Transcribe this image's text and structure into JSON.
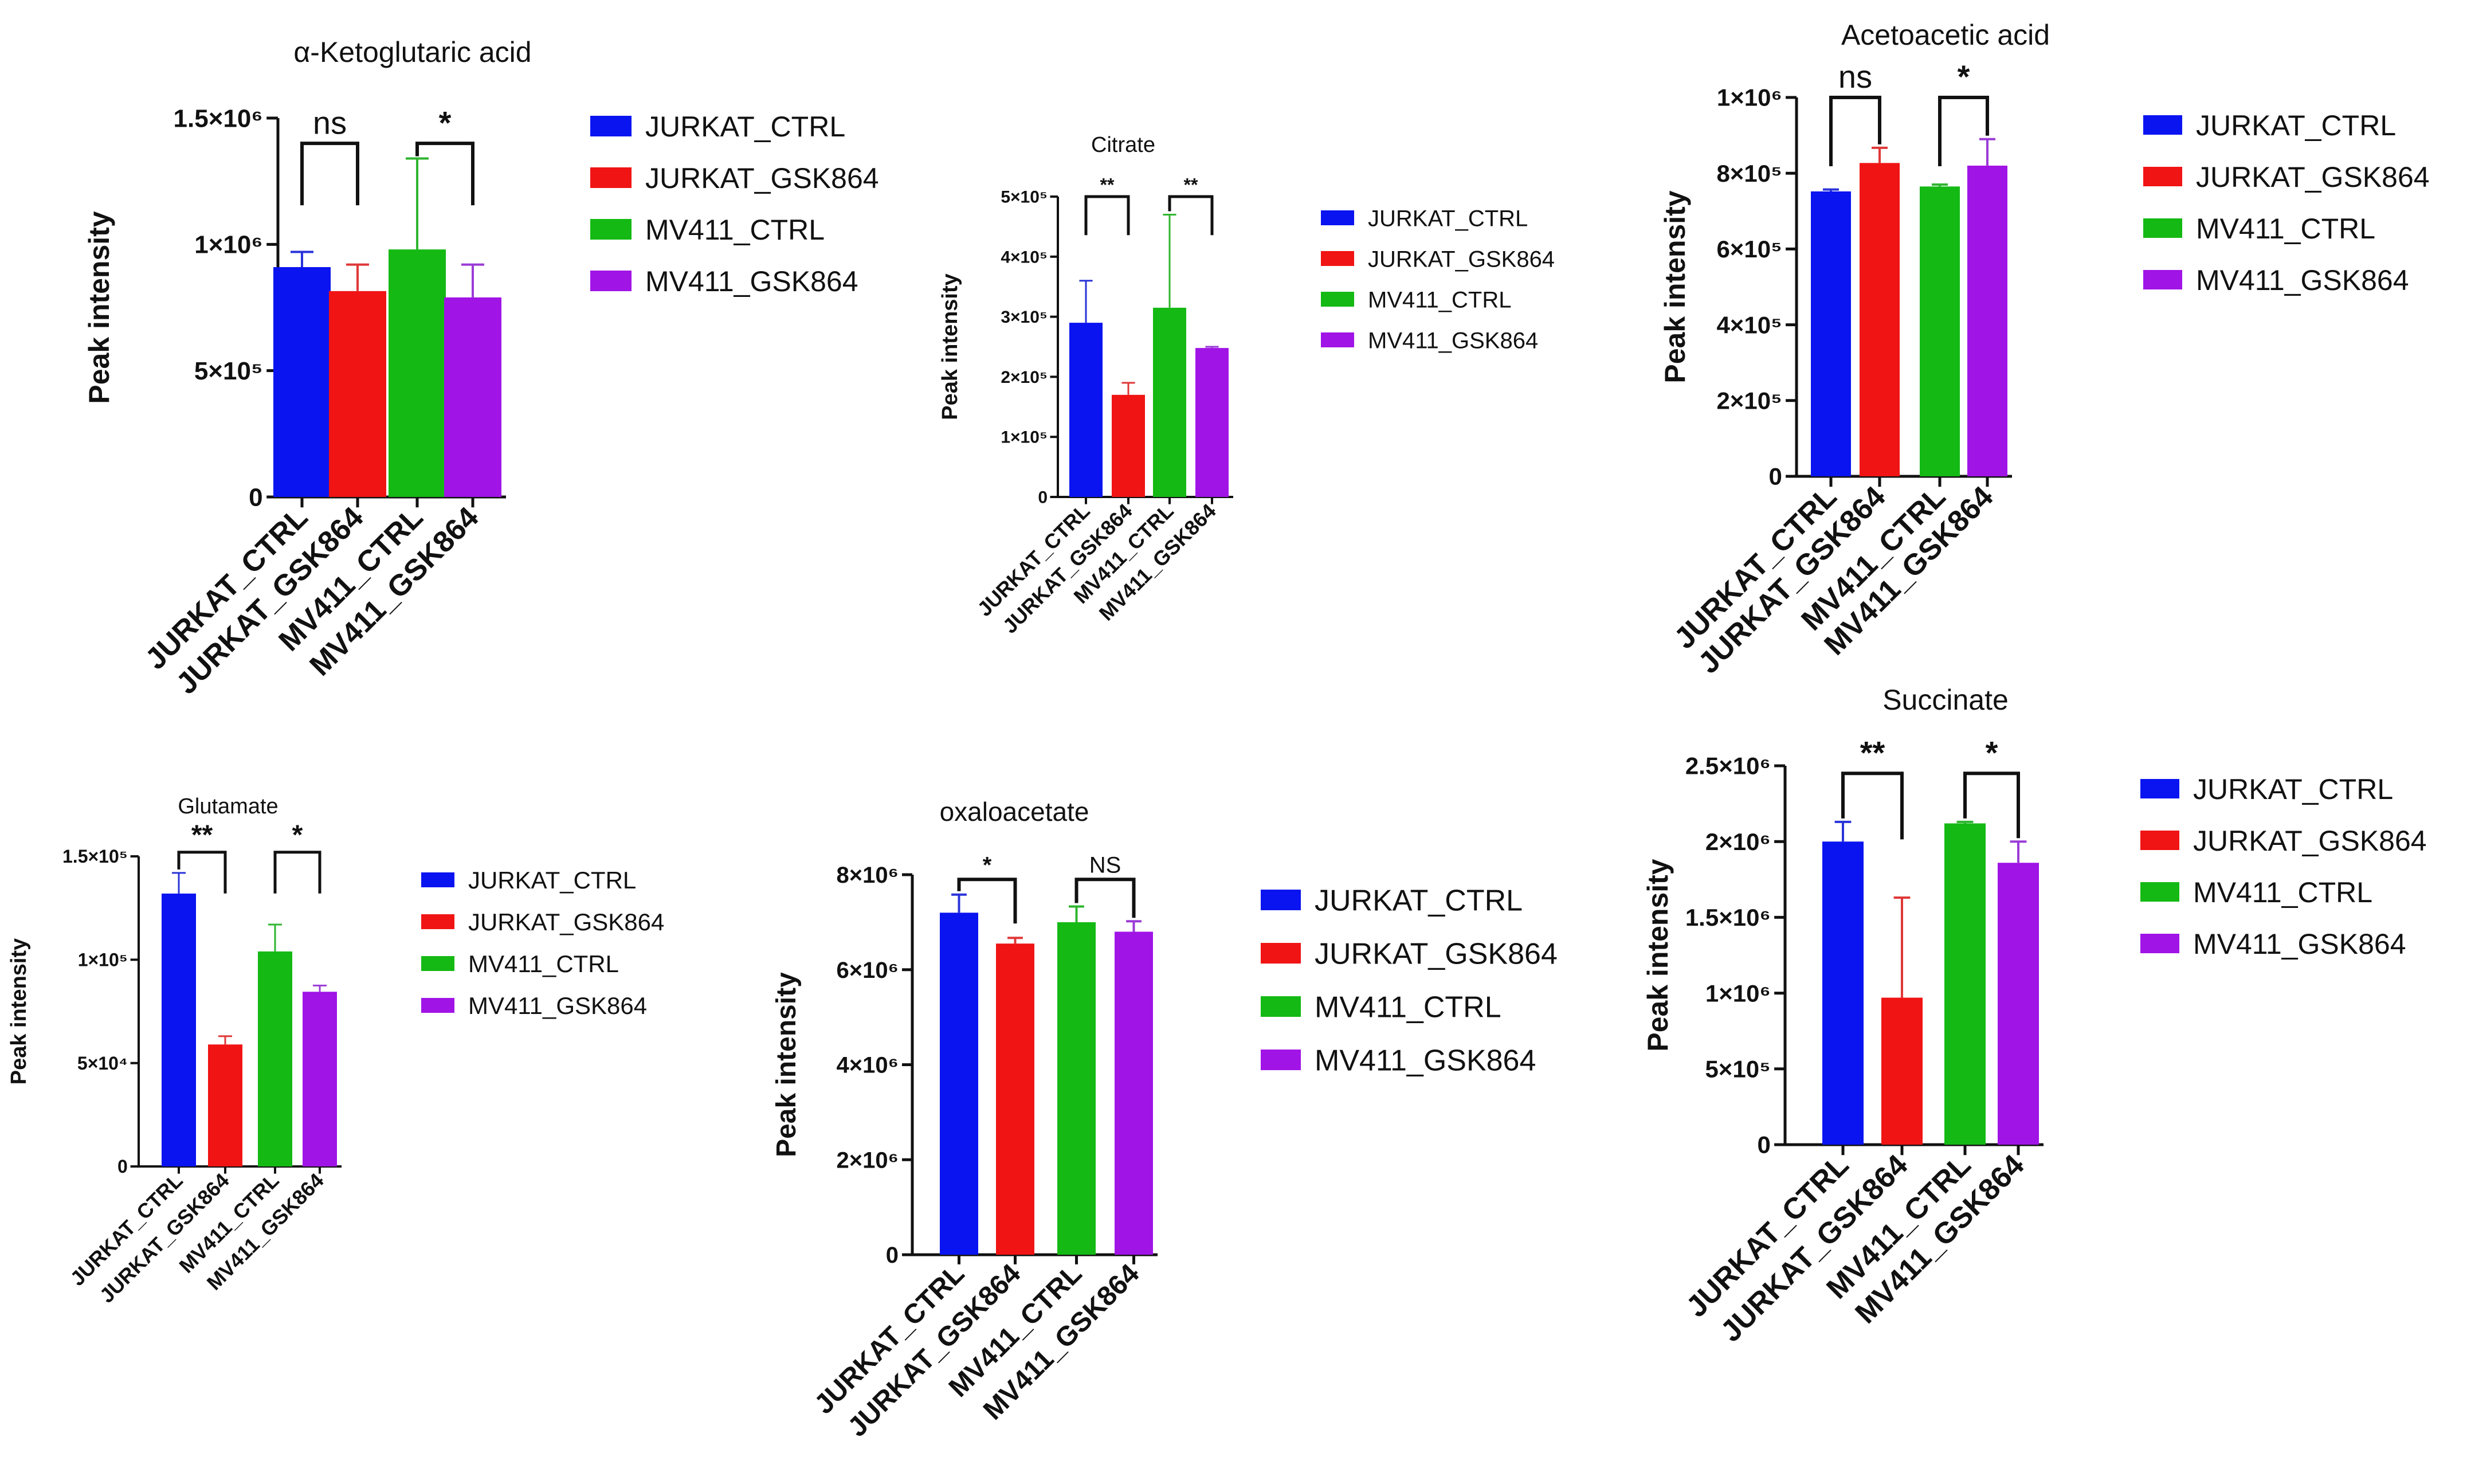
{
  "legend_labels": [
    "JURKAT_CTRL",
    "JURKAT_GSK864",
    "MV411_CTRL",
    "MV411_GSK864"
  ],
  "colors": {
    "JURKAT_CTRL": "#0a14f0",
    "JURKAT_GSK864": "#f01414",
    "MV411_CTRL": "#14b914",
    "MV411_GSK864": "#a014e6"
  },
  "chart_data": [
    {
      "type": "bar",
      "title": "α-Ketoglutaric acid",
      "ylabel": "Peak intensity",
      "categories": [
        "JURKAT_CTRL",
        "JURKAT_GSK864",
        "MV411_CTRL",
        "MV411_GSK864"
      ],
      "values": [
        910000,
        815000,
        980000,
        790000
      ],
      "errors": [
        60000,
        105000,
        360000,
        130000
      ],
      "ylim": [
        0,
        1500000
      ],
      "yticks": [
        0,
        500000,
        1000000,
        1500000
      ],
      "ytick_labels": [
        "0",
        "5×10⁵",
        "1×10⁶",
        "1.5×10⁶"
      ],
      "significance": [
        {
          "pair": [
            0,
            1
          ],
          "label": "ns",
          "level": 1400000
        },
        {
          "pair": [
            2,
            3
          ],
          "label": "*",
          "level": 1400000
        }
      ]
    },
    {
      "type": "bar",
      "title": "Citrate",
      "ylabel": "Peak intensity",
      "categories": [
        "JURKAT_CTRL",
        "JURKAT_GSK864",
        "MV411_CTRL",
        "MV411_GSK864"
      ],
      "values": [
        290000,
        170000,
        315000,
        248000
      ],
      "errors": [
        70000,
        20000,
        155000,
        2000
      ],
      "ylim": [
        0,
        500000
      ],
      "yticks": [
        0,
        100000,
        200000,
        300000,
        400000,
        500000
      ],
      "ytick_labels": [
        "0",
        "1×10⁵",
        "2×10⁵",
        "3×10⁵",
        "4×10⁵",
        "5×10⁵"
      ],
      "significance": [
        {
          "pair": [
            0,
            1
          ],
          "label": "**",
          "level": 500000
        },
        {
          "pair": [
            2,
            3
          ],
          "label": "**",
          "level": 500000
        }
      ]
    },
    {
      "type": "bar",
      "title": "Acetoacetic acid",
      "ylabel": "Peak intensity",
      "categories": [
        "JURKAT_CTRL",
        "JURKAT_GSK864",
        "MV411_CTRL",
        "MV411_GSK864"
      ],
      "values": [
        752000,
        827000,
        765000,
        820000
      ],
      "errors": [
        5000,
        40000,
        5000,
        70000
      ],
      "ylim": [
        0,
        1000000
      ],
      "yticks": [
        0,
        200000,
        400000,
        600000,
        800000,
        1000000
      ],
      "ytick_labels": [
        "0",
        "2×10⁵",
        "4×10⁵",
        "6×10⁵",
        "8×10⁵",
        "1×10⁶"
      ],
      "significance": [
        {
          "pair": [
            0,
            1
          ],
          "label": "ns",
          "level": 1000000
        },
        {
          "pair": [
            2,
            3
          ],
          "label": "*",
          "level": 1000000
        }
      ]
    },
    {
      "type": "bar",
      "title": "Glutamate",
      "ylabel": "Peak intensity",
      "categories": [
        "JURKAT_CTRL",
        "JURKAT_GSK864",
        "MV411_CTRL",
        "MV411_GSK864"
      ],
      "values": [
        132000,
        59000,
        104000,
        84500
      ],
      "errors": [
        10000,
        4000,
        13000,
        3000
      ],
      "ylim": [
        0,
        150000
      ],
      "yticks": [
        0,
        50000,
        100000,
        150000
      ],
      "ytick_labels": [
        "0",
        "5×10⁴",
        "1×10⁵",
        "1.5×10⁵"
      ],
      "significance": [
        {
          "pair": [
            0,
            1
          ],
          "label": "**",
          "level": 152000
        },
        {
          "pair": [
            2,
            3
          ],
          "label": "*",
          "level": 152000
        }
      ]
    },
    {
      "type": "bar",
      "title": "oxaloacetate",
      "ylabel": "Peak intensity",
      "categories": [
        "JURKAT_CTRL",
        "JURKAT_GSK864",
        "MV411_CTRL",
        "MV411_GSK864"
      ],
      "values": [
        7200000,
        6550000,
        7000000,
        6800000
      ],
      "errors": [
        380000,
        120000,
        330000,
        220000
      ],
      "ylim": [
        0,
        8000000
      ],
      "yticks": [
        0,
        2000000,
        4000000,
        6000000,
        8000000
      ],
      "ytick_labels": [
        "0",
        "2×10⁶",
        "4×10⁶",
        "6×10⁶",
        "8×10⁶"
      ],
      "significance": [
        {
          "pair": [
            0,
            1
          ],
          "label": "*",
          "level": 7900000
        },
        {
          "pair": [
            2,
            3
          ],
          "label": "NS",
          "level": 7900000
        }
      ]
    },
    {
      "type": "bar",
      "title": "Succinate",
      "ylabel": "Peak intensity",
      "categories": [
        "JURKAT_CTRL",
        "JURKAT_GSK864",
        "MV411_CTRL",
        "MV411_GSK864"
      ],
      "values": [
        2000000,
        970000,
        2120000,
        1860000
      ],
      "errors": [
        130000,
        660000,
        10000,
        140000
      ],
      "ylim": [
        0,
        2500000
      ],
      "yticks": [
        0,
        500000,
        1000000,
        1500000,
        2000000,
        2500000
      ],
      "ytick_labels": [
        "0",
        "5×10⁵",
        "1×10⁶",
        "1.5×10⁶",
        "2×10⁶",
        "2.5×10⁶"
      ],
      "significance": [
        {
          "pair": [
            0,
            1
          ],
          "label": "**",
          "level": 2450000
        },
        {
          "pair": [
            2,
            3
          ],
          "label": "*",
          "level": 2450000
        }
      ]
    }
  ]
}
